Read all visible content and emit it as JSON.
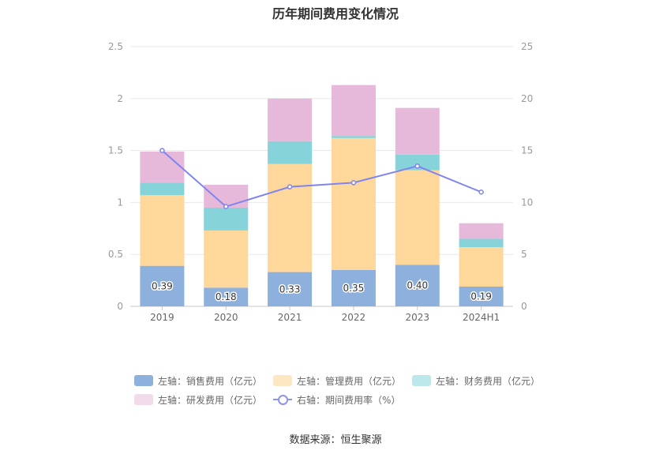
{
  "chart_data": {
    "type": "bar",
    "title": "历年期间费用变化情况",
    "categories": [
      "2019",
      "2020",
      "2021",
      "2022",
      "2023",
      "2024H1"
    ],
    "stacked": true,
    "y_left": {
      "min": 0,
      "max": 2.5,
      "ticks": [
        "0",
        "0.5",
        "1",
        "1.5",
        "2",
        "2.5"
      ]
    },
    "y_right": {
      "min": 0,
      "max": 25,
      "ticks": [
        "0",
        "5",
        "10",
        "15",
        "20",
        "25"
      ]
    },
    "series": [
      {
        "name": "左轴：销售费用（亿元）",
        "axis": "left",
        "color": "#8eb0dc",
        "legend_color": "#8eb0dc",
        "values": [
          0.39,
          0.18,
          0.33,
          0.35,
          0.4,
          0.19
        ],
        "labels": [
          "0.39",
          "0.18",
          "0.33",
          "0.35",
          "0.40",
          "0.19"
        ]
      },
      {
        "name": "左轴：管理费用（亿元）",
        "axis": "left",
        "color": "#fed79b",
        "legend_color": "#fde6c2",
        "values": [
          0.68,
          0.55,
          1.04,
          1.27,
          0.91,
          0.38
        ]
      },
      {
        "name": "左轴：财务费用（亿元）",
        "axis": "left",
        "color": "#86d3d9",
        "legend_color": "#bde8eb",
        "values": [
          0.12,
          0.22,
          0.22,
          0.02,
          0.15,
          0.08
        ]
      },
      {
        "name": "左轴：研发费用（亿元）",
        "axis": "left",
        "color": "#e6b9da",
        "legend_color": "#f2dbeb",
        "values": [
          0.3,
          0.22,
          0.41,
          0.49,
          0.45,
          0.15
        ]
      },
      {
        "name": "右轴：期间费用率（%）",
        "axis": "right",
        "type": "line",
        "color": "#8084f0",
        "values": [
          15.0,
          9.6,
          11.5,
          11.9,
          13.5,
          11.0
        ]
      }
    ],
    "grid": true,
    "legend_position": "bottom"
  },
  "source": "数据来源：恒生聚源"
}
